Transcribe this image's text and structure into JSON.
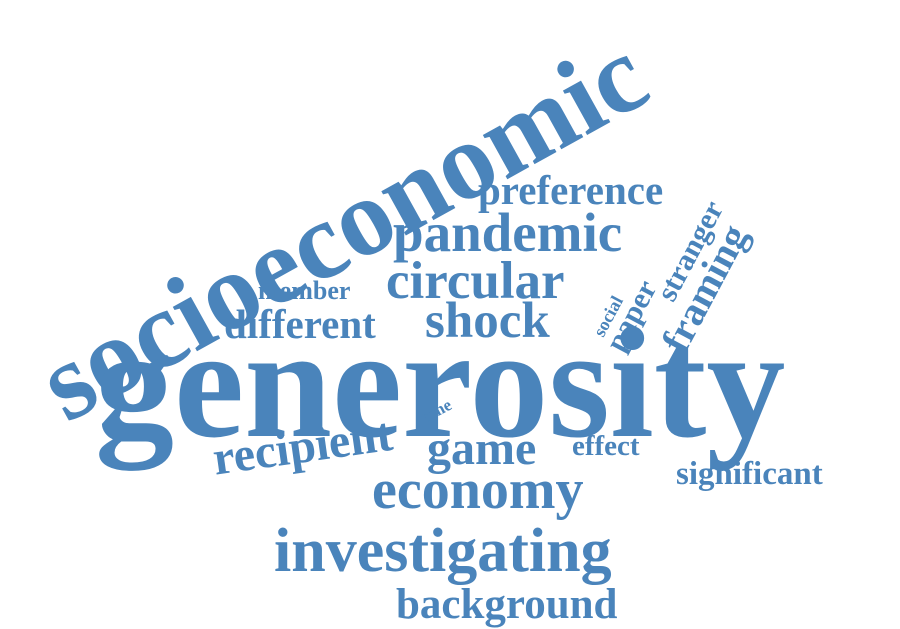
{
  "color": "#4a84bb",
  "words": {
    "socioeconomic": "socioeconomic",
    "generosity": "generosity",
    "preference": "preference",
    "pandemic": "pandemic",
    "stranger": "stranger",
    "framing": "framing",
    "circular": "circular",
    "member": "member",
    "different": "different",
    "shock": "shock",
    "social": "social",
    "paper": "paper",
    "time": "time",
    "recipient": "recipient",
    "game": "game",
    "effect": "effect",
    "significant": "significant",
    "economy": "economy",
    "investigating": "investigating",
    "background": "background"
  }
}
